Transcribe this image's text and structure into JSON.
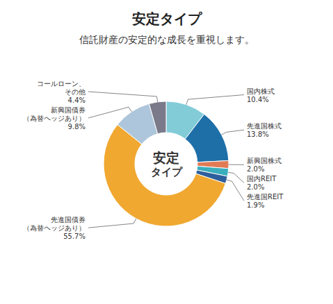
{
  "chart_data": {
    "type": "pie",
    "title": "安定タイプ",
    "subtitle": "信託財産の安定的な成長を重視します。",
    "annotations": [
      "安定",
      "タイプ"
    ],
    "categories": [
      "国内株式",
      "先進国株式",
      "新興国株式",
      "国内REIT",
      "先進国REIT",
      "先進国債券\n（為替ヘッジあり）",
      "新興国債券\n（為替ヘッジあり）",
      "コールローン、\nその他"
    ],
    "values": [
      10.4,
      13.8,
      2.0,
      2.0,
      1.9,
      55.7,
      9.8,
      4.4
    ],
    "value_labels": [
      "10.4%",
      "13.8%",
      "2.0%",
      "2.0%",
      "1.9%",
      "55.7%",
      "9.8%",
      "4.4%"
    ],
    "colors": [
      "#82ccd8",
      "#1e6fa8",
      "#e07b54",
      "#3aaebc",
      "#2e5f9c",
      "#f0a830",
      "#aec6db",
      "#7a7a8a"
    ],
    "data_labels": true
  }
}
